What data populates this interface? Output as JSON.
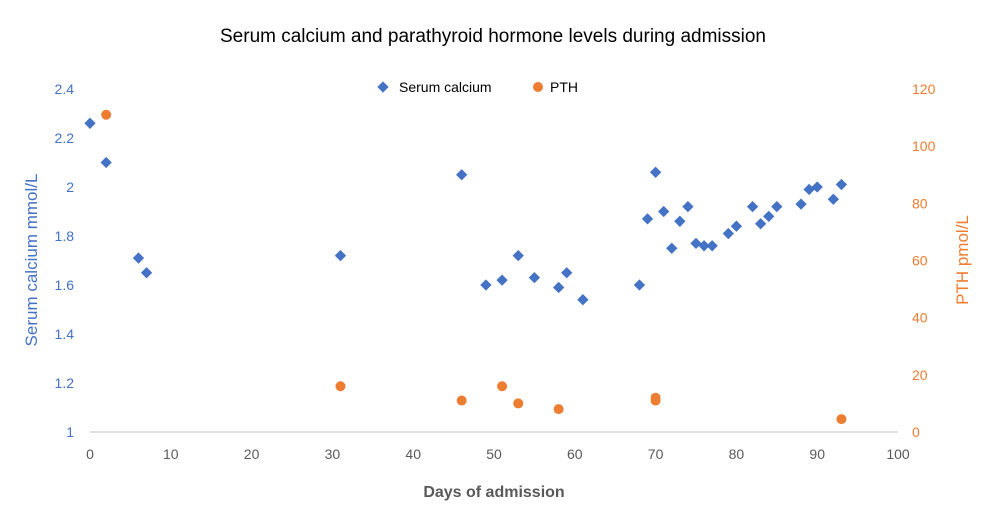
{
  "colors": {
    "calcium": "#4472C4",
    "pth": "#ED7D31",
    "axis": "#595959",
    "grid": "#d9d9d9"
  },
  "chart_data": {
    "type": "scatter",
    "title": "Serum calcium and parathyroid hormone levels during admission",
    "xlabel": "Days of admission",
    "ylabel_left": "Serum calcium mmol/L",
    "ylabel_right": "PTH pmol/L",
    "xlim": [
      0,
      100
    ],
    "ylim_left": [
      1,
      2.4
    ],
    "ylim_right": [
      0,
      120
    ],
    "x_ticks": [
      "0",
      "10",
      "20",
      "30",
      "40",
      "50",
      "60",
      "70",
      "80",
      "90",
      "100"
    ],
    "y_ticks_left": [
      "1",
      "1.2",
      "1.4",
      "1.6",
      "1.8",
      "2",
      "2.2",
      "2.4"
    ],
    "y_ticks_right": [
      "0",
      "20",
      "40",
      "60",
      "80",
      "100",
      "120"
    ],
    "grid": false,
    "legend_position": "top-center",
    "series": [
      {
        "name": "Serum calcium",
        "axis": "left",
        "marker": "diamond",
        "x": [
          0,
          2,
          6,
          7,
          31,
          46,
          49,
          51,
          53,
          55,
          58,
          59,
          61,
          68,
          69,
          70,
          71,
          72,
          73,
          74,
          75,
          76,
          77,
          79,
          80,
          82,
          83,
          84,
          85,
          88,
          89,
          90,
          92,
          93
        ],
        "y": [
          2.26,
          2.1,
          1.71,
          1.65,
          1.72,
          2.05,
          1.6,
          1.62,
          1.72,
          1.63,
          1.59,
          1.65,
          1.54,
          1.6,
          1.87,
          2.06,
          1.9,
          1.75,
          1.86,
          1.92,
          1.77,
          1.76,
          1.76,
          1.81,
          1.84,
          1.92,
          1.85,
          1.88,
          1.92,
          1.93,
          1.99,
          2.0,
          1.95,
          2.01
        ]
      },
      {
        "name": "PTH",
        "axis": "right",
        "marker": "circle",
        "x": [
          2,
          31,
          46,
          51,
          53,
          58,
          70,
          70,
          93
        ],
        "y": [
          111,
          16,
          11,
          16,
          10,
          8,
          12,
          11,
          4.5
        ]
      }
    ]
  }
}
